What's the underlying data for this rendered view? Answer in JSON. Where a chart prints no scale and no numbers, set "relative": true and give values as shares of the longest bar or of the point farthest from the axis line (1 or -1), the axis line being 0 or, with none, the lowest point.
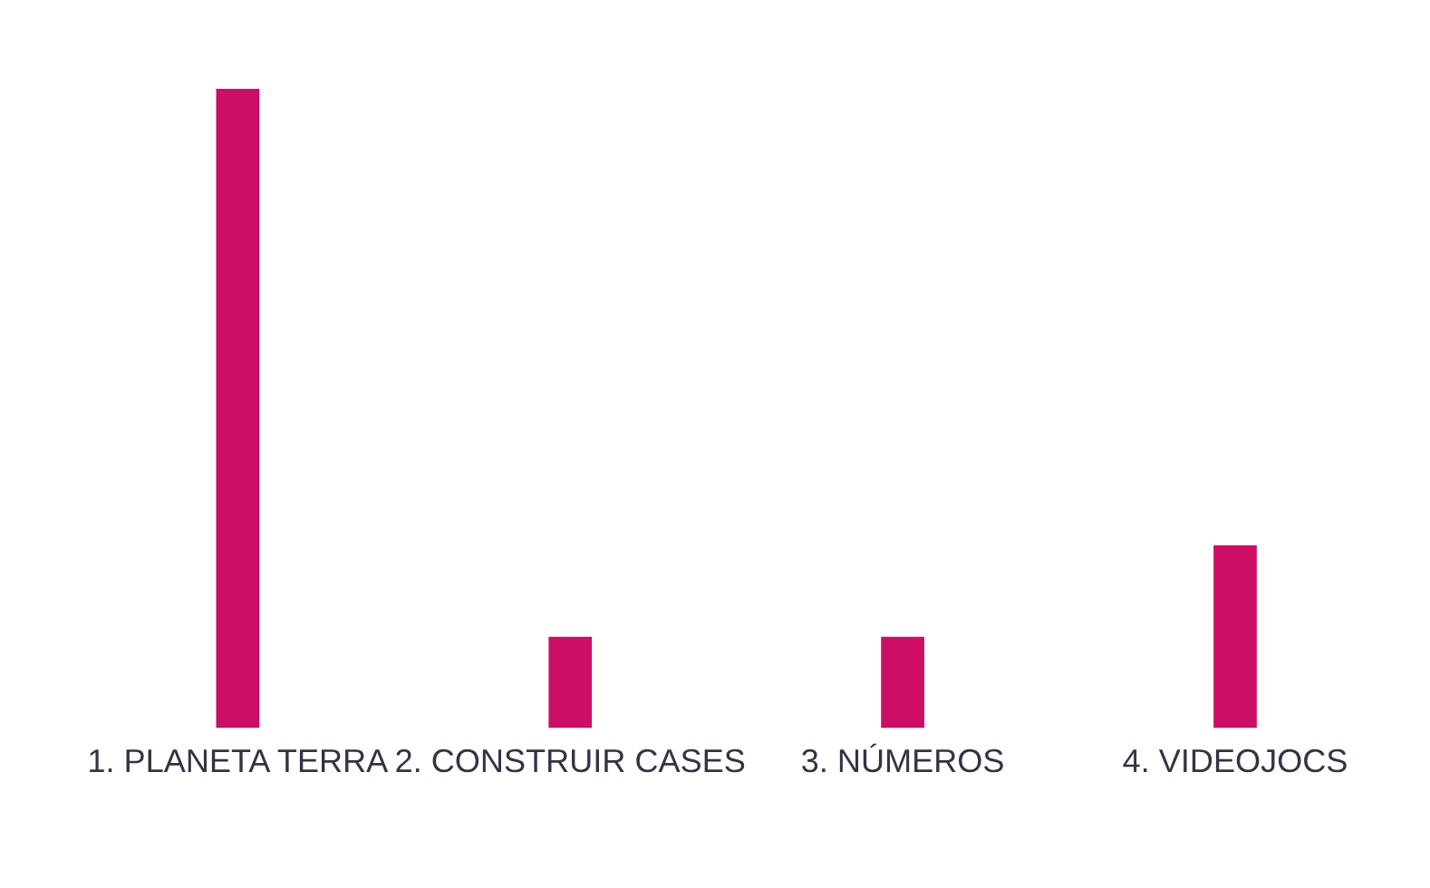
{
  "chart_data": {
    "type": "bar",
    "relative": true,
    "categories": [
      "1. PLANETA TERRA",
      "2. CONSTRUIR CASES",
      "3. NÚMEROS",
      "4. VIDEOJOCS"
    ],
    "values": [
      1,
      0.143,
      0.143,
      0.286
    ],
    "color": "#cc0e66",
    "grid": false,
    "legend": false
  }
}
